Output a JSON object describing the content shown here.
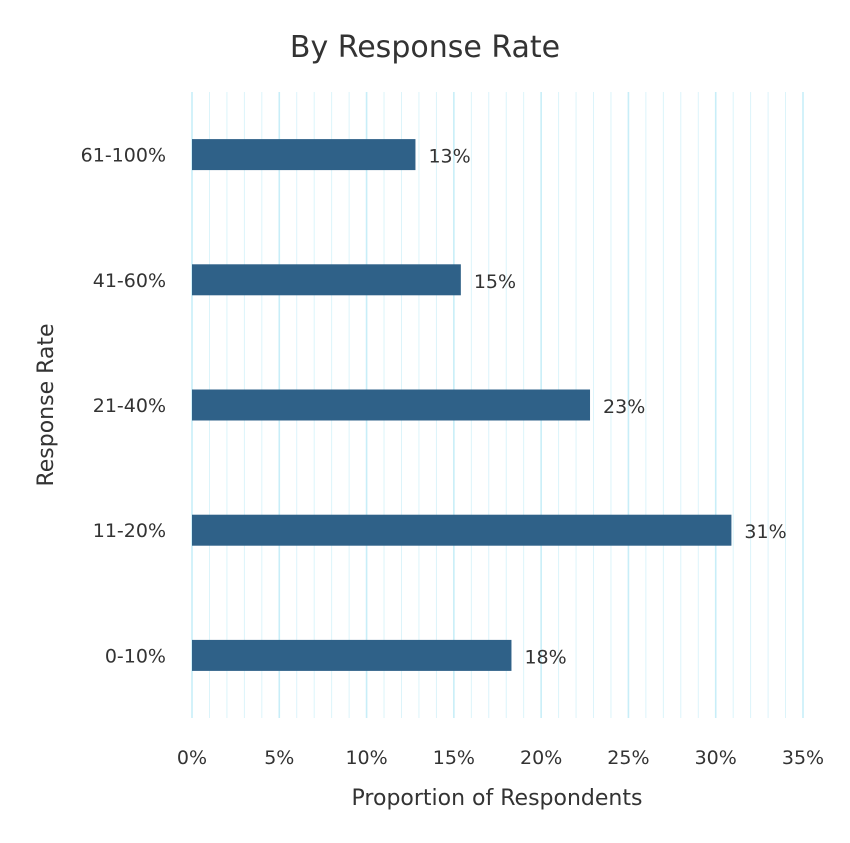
{
  "chart_data": {
    "type": "bar",
    "orientation": "horizontal",
    "title": "By Response Rate",
    "xlabel": "Proportion of Respondents",
    "ylabel": "Response Rate",
    "categories": [
      "0-10%",
      "11-20%",
      "21-40%",
      "41-60%",
      "61-100%"
    ],
    "values": [
      0.183,
      0.309,
      0.228,
      0.154,
      0.128
    ],
    "data_labels": [
      "18%",
      "31%",
      "23%",
      "15%",
      "13%"
    ],
    "xlim": [
      0,
      0.35
    ],
    "x_ticks": [
      0,
      0.05,
      0.1,
      0.15,
      0.2,
      0.25,
      0.3,
      0.35
    ],
    "x_tick_labels": [
      "0%",
      "5%",
      "10%",
      "15%",
      "20%",
      "25%",
      "30%",
      "35%"
    ],
    "grid": true,
    "legend": "none",
    "colors": {
      "bar": "#2f6188",
      "grid": "#c8eef8",
      "text": "#333333"
    }
  }
}
